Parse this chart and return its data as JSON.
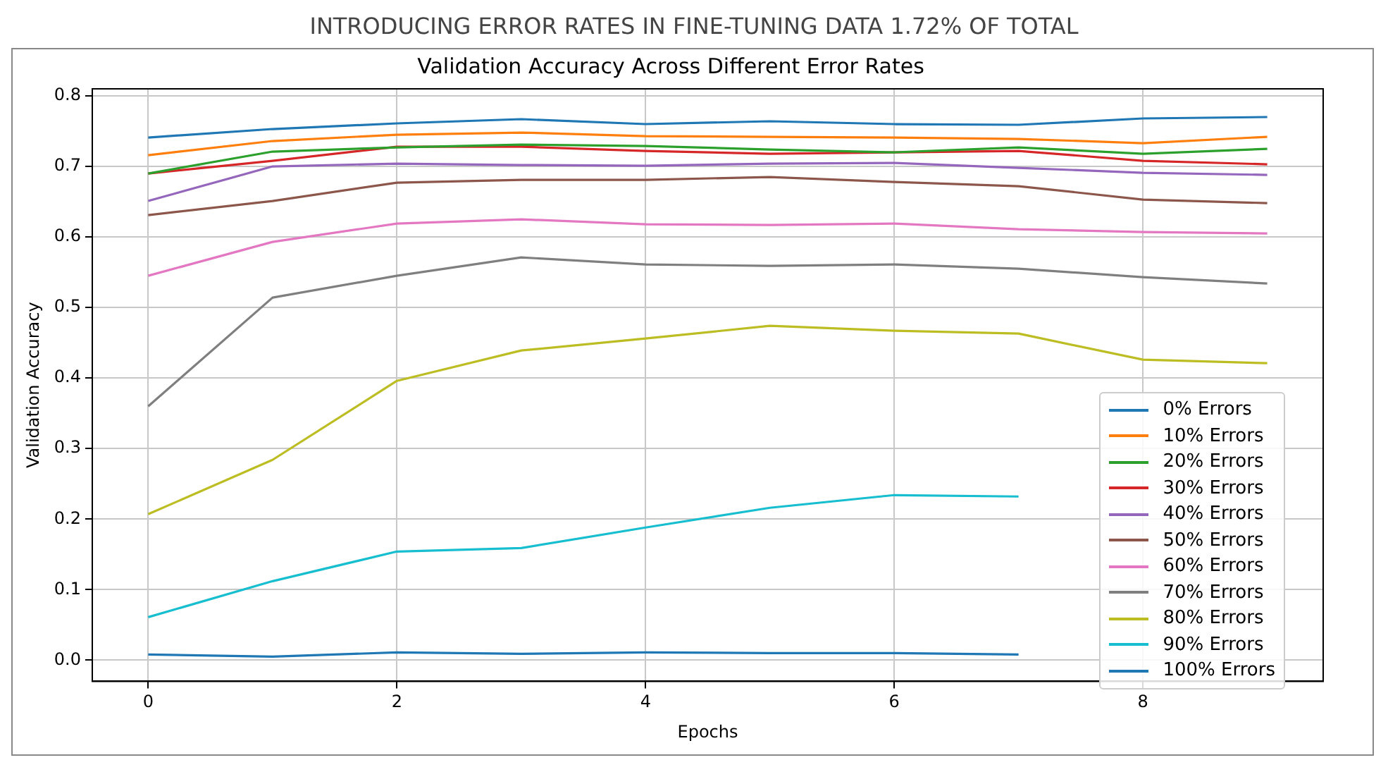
{
  "chart_data": {
    "type": "line",
    "title": "INTRODUCING ERROR RATES IN FINE-TUNING DATA 1.72% OF TOTAL",
    "subtitle": "Validation Accuracy Across Different Error Rates",
    "xlabel": "Epochs",
    "ylabel": "Validation Accuracy",
    "x": [
      0,
      1,
      2,
      3,
      4,
      5,
      6,
      7,
      8,
      9
    ],
    "xlim": [
      -0.45,
      9.45
    ],
    "xticks": [
      0,
      2,
      4,
      6,
      8
    ],
    "ylim": [
      -0.03,
      0.81
    ],
    "yticks": [
      {
        "value": 0,
        "label": "0.0"
      },
      0.1,
      0.2,
      0.3,
      0.4,
      0.5,
      0.6,
      0.7,
      0.8
    ],
    "grid": true,
    "legend": "bottom right",
    "marker": "none",
    "line_style": "solid",
    "series": [
      {
        "name": "0% Errors",
        "color": "#1f77b4",
        "values": [
          0.741,
          0.753,
          0.761,
          0.767,
          0.76,
          0.764,
          0.76,
          0.759,
          0.768,
          0.77
        ]
      },
      {
        "name": "10% Errors",
        "color": "#ff7f0e",
        "values": [
          0.716,
          0.736,
          0.745,
          0.748,
          0.743,
          0.742,
          0.741,
          0.739,
          0.733,
          0.742
        ]
      },
      {
        "name": "20% Errors",
        "color": "#2ca02c",
        "values": [
          0.69,
          0.721,
          0.727,
          0.731,
          0.729,
          0.724,
          0.72,
          0.727,
          0.718,
          0.725
        ]
      },
      {
        "name": "30% Errors",
        "color": "#d62728",
        "values": [
          0.69,
          0.708,
          0.728,
          0.728,
          0.722,
          0.718,
          0.72,
          0.722,
          0.708,
          0.703
        ]
      },
      {
        "name": "40% Errors",
        "color": "#9467bd",
        "values": [
          0.651,
          0.7,
          0.704,
          0.702,
          0.701,
          0.704,
          0.705,
          0.698,
          0.691,
          0.688
        ]
      },
      {
        "name": "50% Errors",
        "color": "#8c564b",
        "values": [
          0.631,
          0.651,
          0.677,
          0.681,
          0.681,
          0.685,
          0.678,
          0.672,
          0.653,
          0.648
        ]
      },
      {
        "name": "60% Errors",
        "color": "#e377c2",
        "values": [
          0.545,
          0.593,
          0.619,
          0.625,
          0.618,
          0.617,
          0.619,
          0.611,
          0.607,
          0.605
        ]
      },
      {
        "name": "70% Errors",
        "color": "#7f7f7f",
        "values": [
          0.36,
          0.514,
          0.545,
          0.571,
          0.561,
          0.559,
          0.561,
          0.555,
          0.543,
          0.534
        ]
      },
      {
        "name": "80% Errors",
        "color": "#bcbd22",
        "values": [
          0.207,
          0.284,
          0.396,
          0.439,
          0.456,
          0.474,
          0.467,
          0.463,
          0.426,
          0.421
        ]
      },
      {
        "name": "90% Errors",
        "color": "#17becf",
        "values": [
          0.061,
          0.112,
          0.154,
          0.159,
          0.188,
          0.216,
          0.234,
          0.232,
          null,
          null
        ]
      },
      {
        "name": "100% Errors",
        "color": "#1f77b4",
        "values": [
          0.008,
          0.005,
          0.011,
          0.009,
          0.011,
          0.01,
          0.01,
          0.008,
          null,
          null
        ]
      }
    ]
  }
}
